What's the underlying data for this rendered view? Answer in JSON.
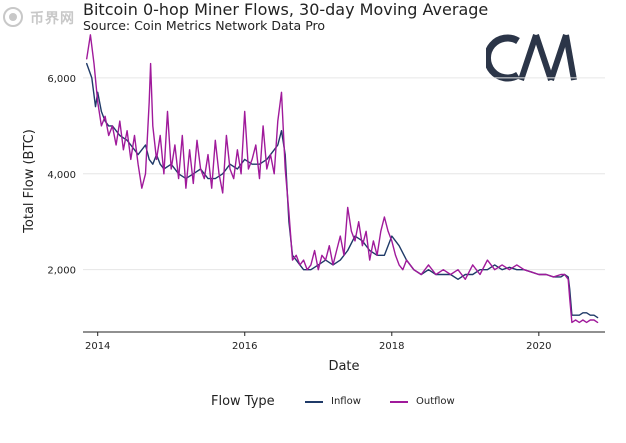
{
  "watermark": {
    "text": "币界网"
  },
  "chart_data": {
    "type": "line",
    "title": "Bitcoin 0-hop Miner Flows, 30-day Moving Average",
    "subtitle": "Source: Coin Metrics Network Data Pro",
    "xlabel": "Date",
    "ylabel": "Total Flow (BTC)",
    "xlim": [
      2013.8,
      2020.9
    ],
    "ylim": [
      700,
      7000
    ],
    "x_ticks": [
      2014,
      2016,
      2018,
      2020
    ],
    "y_ticks": [
      2000,
      4000,
      6000
    ],
    "y_tick_labels": [
      "2,000",
      "4,000",
      "6,000"
    ],
    "grid": "horizontal",
    "legend": {
      "title": "Flow Type",
      "position": "bottom"
    },
    "series": [
      {
        "name": "Inflow",
        "color": "#1f3a68",
        "x": [
          2013.85,
          2013.92,
          2013.97,
          2014.0,
          2014.05,
          2014.1,
          2014.15,
          2014.2,
          2014.3,
          2014.4,
          2014.5,
          2014.55,
          2014.6,
          2014.65,
          2014.7,
          2014.75,
          2014.8,
          2014.85,
          2014.9,
          2015.0,
          2015.1,
          2015.2,
          2015.3,
          2015.4,
          2015.5,
          2015.6,
          2015.7,
          2015.8,
          2015.9,
          2016.0,
          2016.1,
          2016.2,
          2016.3,
          2016.4,
          2016.45,
          2016.5,
          2016.55,
          2016.6,
          2016.65,
          2016.7,
          2016.75,
          2016.8,
          2016.9,
          2017.0,
          2017.1,
          2017.2,
          2017.3,
          2017.4,
          2017.5,
          2017.6,
          2017.7,
          2017.8,
          2017.9,
          2018.0,
          2018.1,
          2018.2,
          2018.3,
          2018.4,
          2018.5,
          2018.6,
          2018.7,
          2018.8,
          2018.9,
          2019.0,
          2019.1,
          2019.2,
          2019.3,
          2019.4,
          2019.5,
          2019.6,
          2019.7,
          2019.8,
          2019.9,
          2020.0,
          2020.1,
          2020.2,
          2020.3,
          2020.35,
          2020.4,
          2020.42,
          2020.45,
          2020.5,
          2020.55,
          2020.6,
          2020.65,
          2020.7,
          2020.75,
          2020.8
        ],
        "values": [
          6300,
          6000,
          5400,
          5700,
          5300,
          5100,
          5000,
          5000,
          4800,
          4700,
          4500,
          4400,
          4500,
          4600,
          4300,
          4200,
          4400,
          4200,
          4100,
          4200,
          4000,
          3900,
          4000,
          4100,
          3900,
          3900,
          4000,
          4200,
          4100,
          4300,
          4200,
          4200,
          4300,
          4500,
          4600,
          4900,
          4400,
          3000,
          2300,
          2200,
          2100,
          2000,
          2000,
          2100,
          2200,
          2100,
          2200,
          2400,
          2700,
          2600,
          2400,
          2300,
          2300,
          2700,
          2500,
          2200,
          2000,
          1900,
          2000,
          1900,
          1900,
          1900,
          1800,
          1900,
          1900,
          2000,
          2000,
          2100,
          2000,
          2050,
          2000,
          2000,
          1950,
          1900,
          1900,
          1850,
          1850,
          1900,
          1850,
          1600,
          1050,
          1050,
          1050,
          1100,
          1100,
          1050,
          1050,
          1000
        ]
      },
      {
        "name": "Outflow",
        "color": "#a01a9b",
        "x": [
          2013.85,
          2013.9,
          2013.95,
          2014.0,
          2014.05,
          2014.1,
          2014.15,
          2014.2,
          2014.25,
          2014.3,
          2014.35,
          2014.4,
          2014.45,
          2014.5,
          2014.55,
          2014.6,
          2014.65,
          2014.7,
          2014.72,
          2014.75,
          2014.8,
          2014.85,
          2014.9,
          2014.95,
          2015.0,
          2015.05,
          2015.1,
          2015.15,
          2015.2,
          2015.25,
          2015.3,
          2015.35,
          2015.4,
          2015.45,
          2015.5,
          2015.55,
          2015.6,
          2015.65,
          2015.7,
          2015.75,
          2015.8,
          2015.85,
          2015.9,
          2015.95,
          2016.0,
          2016.05,
          2016.1,
          2016.15,
          2016.2,
          2016.25,
          2016.3,
          2016.35,
          2016.4,
          2016.45,
          2016.5,
          2016.55,
          2016.6,
          2016.65,
          2016.7,
          2016.75,
          2016.8,
          2016.85,
          2016.9,
          2016.95,
          2017.0,
          2017.05,
          2017.1,
          2017.15,
          2017.2,
          2017.25,
          2017.3,
          2017.35,
          2017.4,
          2017.45,
          2017.5,
          2017.55,
          2017.6,
          2017.65,
          2017.7,
          2017.75,
          2017.8,
          2017.85,
          2017.9,
          2017.95,
          2018.0,
          2018.05,
          2018.1,
          2018.15,
          2018.2,
          2018.3,
          2018.4,
          2018.5,
          2018.6,
          2018.7,
          2018.8,
          2018.9,
          2019.0,
          2019.1,
          2019.2,
          2019.3,
          2019.4,
          2019.5,
          2019.6,
          2019.7,
          2019.8,
          2019.9,
          2020.0,
          2020.1,
          2020.2,
          2020.3,
          2020.35,
          2020.4,
          2020.42,
          2020.45,
          2020.5,
          2020.55,
          2020.6,
          2020.65,
          2020.7,
          2020.75,
          2020.8
        ],
        "values": [
          6400,
          6900,
          6300,
          5500,
          5000,
          5200,
          4800,
          5000,
          4600,
          5100,
          4500,
          4900,
          4300,
          4800,
          4200,
          3700,
          4000,
          5500,
          6300,
          5000,
          4300,
          4800,
          4000,
          5300,
          4100,
          4600,
          3900,
          4800,
          3700,
          4500,
          3800,
          4700,
          4100,
          3900,
          4400,
          3700,
          4700,
          4000,
          3600,
          4800,
          4100,
          3900,
          4500,
          4000,
          5300,
          4100,
          4300,
          4600,
          3900,
          5000,
          4100,
          4400,
          4000,
          5100,
          5700,
          4100,
          3200,
          2200,
          2300,
          2100,
          2200,
          2000,
          2100,
          2400,
          2000,
          2300,
          2200,
          2500,
          2100,
          2400,
          2700,
          2300,
          3300,
          2800,
          2600,
          3000,
          2500,
          2800,
          2200,
          2600,
          2300,
          2800,
          3100,
          2800,
          2600,
          2300,
          2100,
          2000,
          2200,
          2000,
          1900,
          2100,
          1900,
          2000,
          1900,
          2000,
          1800,
          2100,
          1900,
          2200,
          2000,
          2100,
          2000,
          2100,
          2000,
          1950,
          1900,
          1900,
          1850,
          1900,
          1900,
          1800,
          1400,
          900,
          950,
          900,
          950,
          900,
          950,
          950,
          900
        ]
      }
    ]
  }
}
